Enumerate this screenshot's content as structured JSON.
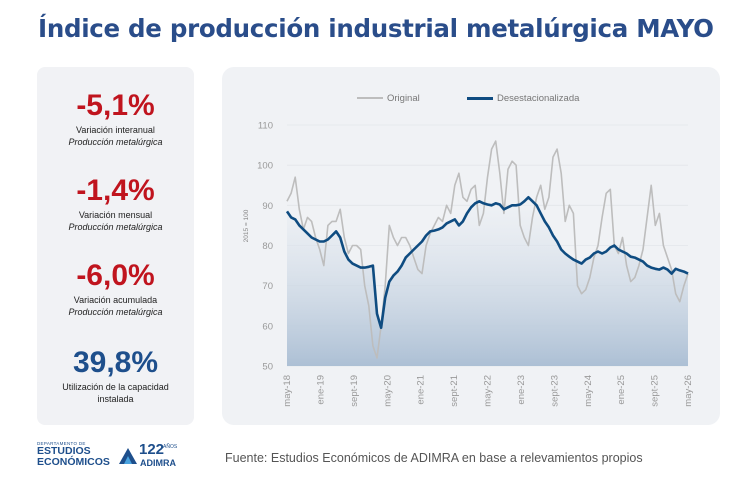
{
  "title": "Índice de producción industrial metalúrgica MAYO",
  "metrics": [
    {
      "value": "-5,1%",
      "label": "Variación interanual",
      "sublabel": "Producción metalúrgica"
    },
    {
      "value": "-1,4%",
      "label": "Variación mensual",
      "sublabel": "Producción metalúrgica"
    },
    {
      "value": "-6,0%",
      "label": "Variación acumulada",
      "sublabel": "Producción metalúrgica"
    },
    {
      "value": "39,8%",
      "label": "Utilización de la capacidad",
      "sublabel": "instalada"
    }
  ],
  "colors": {
    "title": "#2a4d8a",
    "negative": "#c0141e",
    "positive": "#1e4f8c",
    "original": "#bdbdbd",
    "deseasonalized": "#0f4c81"
  },
  "chart_data": {
    "type": "line",
    "ylabel": "2015 = 100",
    "ylim": [
      50,
      110
    ],
    "yticks": [
      50,
      60,
      70,
      80,
      90,
      100,
      110
    ],
    "x_start": "may-18",
    "x_end": "may-26",
    "xticks": [
      "may-18",
      "ene-19",
      "sept-19",
      "may-20",
      "ene-21",
      "sept-21",
      "may-22",
      "ene-23",
      "sept-23",
      "may-24",
      "ene-25",
      "sept-25",
      "may-26"
    ],
    "legend": [
      "Original",
      "Desestacionalizada"
    ],
    "legend_position": "top",
    "series": [
      {
        "name": "Original",
        "values": [
          91,
          93,
          97,
          89,
          84,
          87,
          86,
          82,
          79,
          75,
          85,
          86,
          86,
          89,
          82,
          78,
          80,
          80,
          79,
          70,
          65,
          55,
          52,
          60,
          70,
          85,
          82,
          80,
          82,
          82,
          80,
          77,
          74,
          73,
          80,
          83,
          85,
          87,
          86,
          90,
          88,
          95,
          98,
          92,
          91,
          94,
          95,
          85,
          88,
          97,
          104,
          106,
          98,
          88,
          99,
          101,
          100,
          85,
          82,
          80,
          87,
          92,
          95,
          89,
          92,
          102,
          104,
          98,
          86,
          90,
          88,
          70,
          68,
          69,
          72,
          77,
          80,
          87,
          93,
          94,
          80,
          78,
          82,
          75,
          71,
          72,
          75,
          79,
          87,
          95,
          85,
          88,
          80,
          77,
          74,
          68,
          66,
          70,
          73
        ]
      },
      {
        "name": "Desestacionalizada",
        "values": [
          88.5,
          87,
          86.5,
          85,
          84,
          83,
          82,
          81.5,
          81,
          81,
          81.5,
          82.5,
          83.5,
          82,
          78.5,
          76.5,
          75.5,
          75,
          74.5,
          74.5,
          74.7,
          75,
          63,
          59.5,
          67,
          71,
          72.5,
          73.5,
          75,
          77,
          78,
          79,
          80,
          81,
          82.5,
          83.5,
          83.7,
          84,
          84.5,
          85.5,
          86,
          86.5,
          85,
          86,
          88,
          89.5,
          90.5,
          91,
          90.5,
          90.2,
          90,
          90.5,
          90.2,
          89,
          89.5,
          90,
          90,
          90.2,
          91,
          92,
          91,
          90,
          88,
          86,
          84.5,
          82.5,
          81,
          79,
          78,
          77.2,
          76.5,
          76,
          75.5,
          76.5,
          77,
          78,
          78.5,
          78,
          78.5,
          79.5,
          80,
          79,
          78.5,
          78,
          77.2,
          77,
          76.5,
          76,
          75,
          74.5,
          74.2,
          74,
          74.5,
          74,
          73,
          74.2,
          73.8,
          73.5,
          73
        ]
      }
    ]
  },
  "source": "Fuente: Estudios Económicos de ADIMRA en base a relevamientos propios",
  "logos": {
    "dept_small": "DEPARTAMENTO DE",
    "dept_line1": "ESTUDIOS",
    "dept_line2": "ECONÓMICOS",
    "adimra_number": "122",
    "adimra_anos": "AÑOS",
    "adimra_name": "ADIMRA"
  }
}
